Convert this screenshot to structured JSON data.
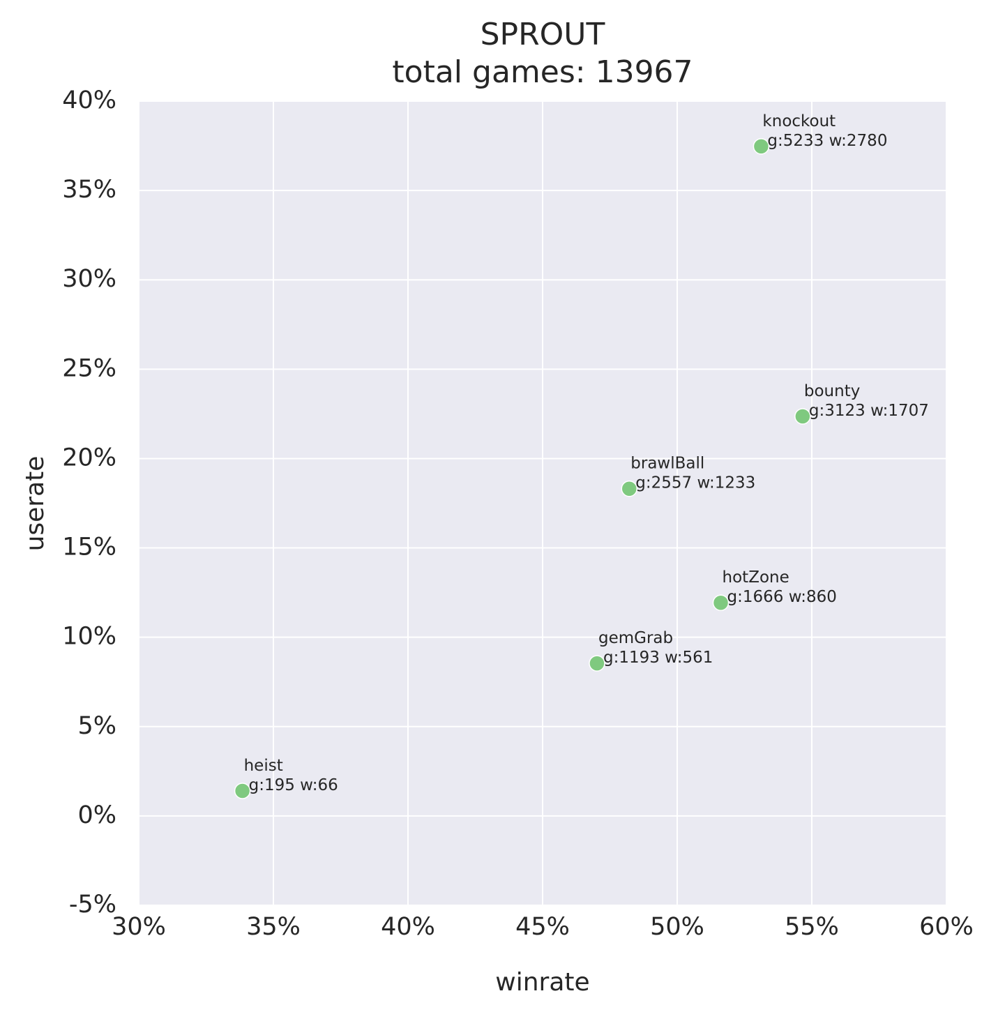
{
  "chart_data": {
    "type": "scatter",
    "title": [
      "SPROUT",
      "total games: 13967"
    ],
    "xlabel": "winrate",
    "ylabel": "userate",
    "xlim": [
      30,
      60
    ],
    "ylim": [
      -5,
      40
    ],
    "x_ticks": [
      30,
      35,
      40,
      45,
      50,
      55,
      60
    ],
    "y_ticks": [
      -5,
      0,
      5,
      10,
      15,
      20,
      25,
      30,
      35,
      40
    ],
    "tick_suffix": "%",
    "grid": true,
    "point_color": "#7fc97f",
    "background_color": "#eaeaf2",
    "points": [
      {
        "name": "knockout",
        "x": 53.12,
        "y": 37.47,
        "label": "g:5233 w:2780"
      },
      {
        "name": "bounty",
        "x": 54.66,
        "y": 22.36,
        "label": "g:3123 w:1707"
      },
      {
        "name": "brawlBall",
        "x": 48.22,
        "y": 18.31,
        "label": "g:2557 w:1233"
      },
      {
        "name": "hotZone",
        "x": 51.62,
        "y": 11.93,
        "label": "g:1666 w:860"
      },
      {
        "name": "gemGrab",
        "x": 47.02,
        "y": 8.54,
        "label": "g:1193 w:561"
      },
      {
        "name": "heist",
        "x": 33.85,
        "y": 1.4,
        "label": "g:195 w:66"
      }
    ]
  }
}
